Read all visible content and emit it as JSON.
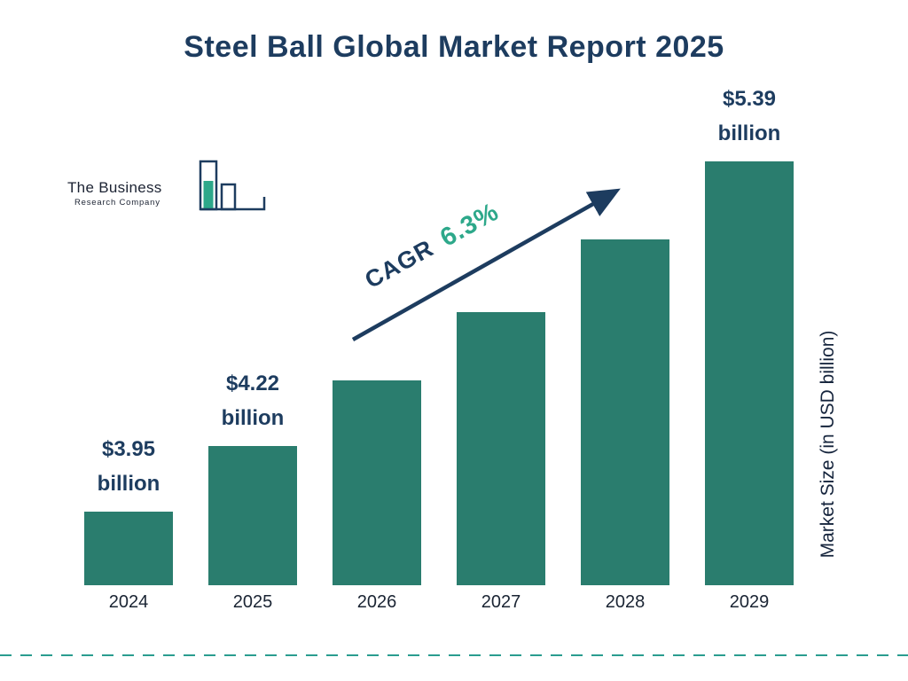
{
  "title": "Steel Ball Global Market Report 2025",
  "logo": {
    "name_line": "The Business",
    "sub_line": "Research Company"
  },
  "cagr": {
    "label": "CAGR",
    "value": "6.3%"
  },
  "y_axis_label": "Market Size (in USD billion)",
  "colors": {
    "bar": "#2a7d6e",
    "navy": "#1d3c5f",
    "green": "#2da88a",
    "dash": "#2a9d8f"
  },
  "chart_data": {
    "type": "bar",
    "title": "Steel Ball Global Market Report 2025",
    "categories": [
      "2024",
      "2025",
      "2026",
      "2027",
      "2028",
      "2029"
    ],
    "values": [
      3.95,
      4.22,
      4.49,
      4.77,
      5.07,
      5.39
    ],
    "unit": "USD billion",
    "xlabel": "",
    "ylabel": "Market Size (in USD billion)",
    "annotations": {
      "cagr_label": "CAGR",
      "cagr_value": "6.3%"
    },
    "legend": false,
    "grid": false,
    "value_labels": [
      {
        "amount": "$3.95",
        "unit_word": "billion"
      },
      {
        "amount": "$4.22",
        "unit_word": "billion"
      },
      null,
      null,
      null,
      {
        "amount": "$5.39",
        "unit_word": "billion"
      }
    ]
  }
}
